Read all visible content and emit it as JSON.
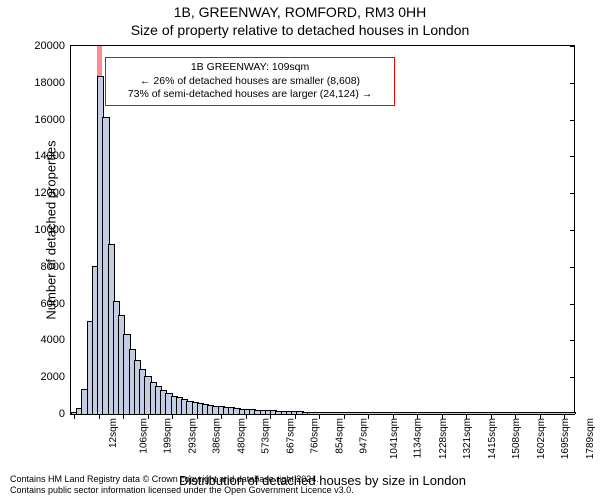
{
  "title_line1": "1B, GREENWAY, ROMFORD, RM3 0HH",
  "title_line2": "Size of property relative to detached houses in London",
  "chart": {
    "type": "histogram",
    "ylabel": "Number of detached properties",
    "xlabel": "Distribution of detached houses by size in London",
    "ylim": [
      0,
      20000
    ],
    "ytick_step": 2000,
    "xlim_sqm": [
      0,
      1920
    ],
    "xtick_start": 12,
    "xtick_step": 93.5,
    "xtick_count": 21,
    "xtick_unit": "sqm",
    "bar_fill": "#c2cde4",
    "bar_edge": "#000000",
    "highlight_fill": "rgba(255,0,0,0.45)",
    "highlight_bin_min": 100,
    "highlight_bin_max": 120,
    "background_color": "#ffffff",
    "bins": [
      {
        "min": 0,
        "max": 20,
        "count": 60
      },
      {
        "min": 20,
        "max": 40,
        "count": 250
      },
      {
        "min": 40,
        "max": 60,
        "count": 1300
      },
      {
        "min": 60,
        "max": 80,
        "count": 5000
      },
      {
        "min": 80,
        "max": 100,
        "count": 8000
      },
      {
        "min": 100,
        "max": 120,
        "count": 18300
      },
      {
        "min": 120,
        "max": 140,
        "count": 16100
      },
      {
        "min": 140,
        "max": 160,
        "count": 9200
      },
      {
        "min": 160,
        "max": 180,
        "count": 6100
      },
      {
        "min": 180,
        "max": 200,
        "count": 5300
      },
      {
        "min": 200,
        "max": 220,
        "count": 4300
      },
      {
        "min": 220,
        "max": 240,
        "count": 3500
      },
      {
        "min": 240,
        "max": 260,
        "count": 2900
      },
      {
        "min": 260,
        "max": 280,
        "count": 2400
      },
      {
        "min": 280,
        "max": 300,
        "count": 2000
      },
      {
        "min": 300,
        "max": 320,
        "count": 1700
      },
      {
        "min": 320,
        "max": 340,
        "count": 1450
      },
      {
        "min": 340,
        "max": 360,
        "count": 1250
      },
      {
        "min": 360,
        "max": 380,
        "count": 1100
      },
      {
        "min": 380,
        "max": 400,
        "count": 950
      },
      {
        "min": 400,
        "max": 420,
        "count": 850
      },
      {
        "min": 420,
        "max": 440,
        "count": 750
      },
      {
        "min": 440,
        "max": 460,
        "count": 670
      },
      {
        "min": 460,
        "max": 480,
        "count": 600
      },
      {
        "min": 480,
        "max": 500,
        "count": 540
      },
      {
        "min": 500,
        "max": 520,
        "count": 490
      },
      {
        "min": 520,
        "max": 540,
        "count": 440
      },
      {
        "min": 540,
        "max": 560,
        "count": 400
      },
      {
        "min": 560,
        "max": 580,
        "count": 360
      },
      {
        "min": 580,
        "max": 600,
        "count": 330
      },
      {
        "min": 600,
        "max": 620,
        "count": 300
      },
      {
        "min": 620,
        "max": 640,
        "count": 270
      },
      {
        "min": 640,
        "max": 660,
        "count": 245
      },
      {
        "min": 660,
        "max": 680,
        "count": 225
      },
      {
        "min": 680,
        "max": 700,
        "count": 205
      },
      {
        "min": 700,
        "max": 720,
        "count": 185
      },
      {
        "min": 720,
        "max": 740,
        "count": 170
      },
      {
        "min": 740,
        "max": 760,
        "count": 155
      },
      {
        "min": 760,
        "max": 780,
        "count": 140
      },
      {
        "min": 780,
        "max": 800,
        "count": 128
      },
      {
        "min": 800,
        "max": 820,
        "count": 117
      },
      {
        "min": 820,
        "max": 840,
        "count": 106
      },
      {
        "min": 840,
        "max": 860,
        "count": 96
      },
      {
        "min": 860,
        "max": 880,
        "count": 88
      },
      {
        "min": 880,
        "max": 900,
        "count": 80
      },
      {
        "min": 900,
        "max": 1920,
        "count": 60
      }
    ]
  },
  "annotation": {
    "line1": "1B GREENWAY: 109sqm",
    "line2": "← 26% of detached houses are smaller (8,608)",
    "line3": "73% of semi-detached houses are larger (24,124) →",
    "border_color": "#ff0000"
  },
  "footer": {
    "line1": "Contains HM Land Registry data © Crown copyright and database right 2024.",
    "line2": "Contains public sector information licensed under the Open Government Licence v3.0."
  }
}
